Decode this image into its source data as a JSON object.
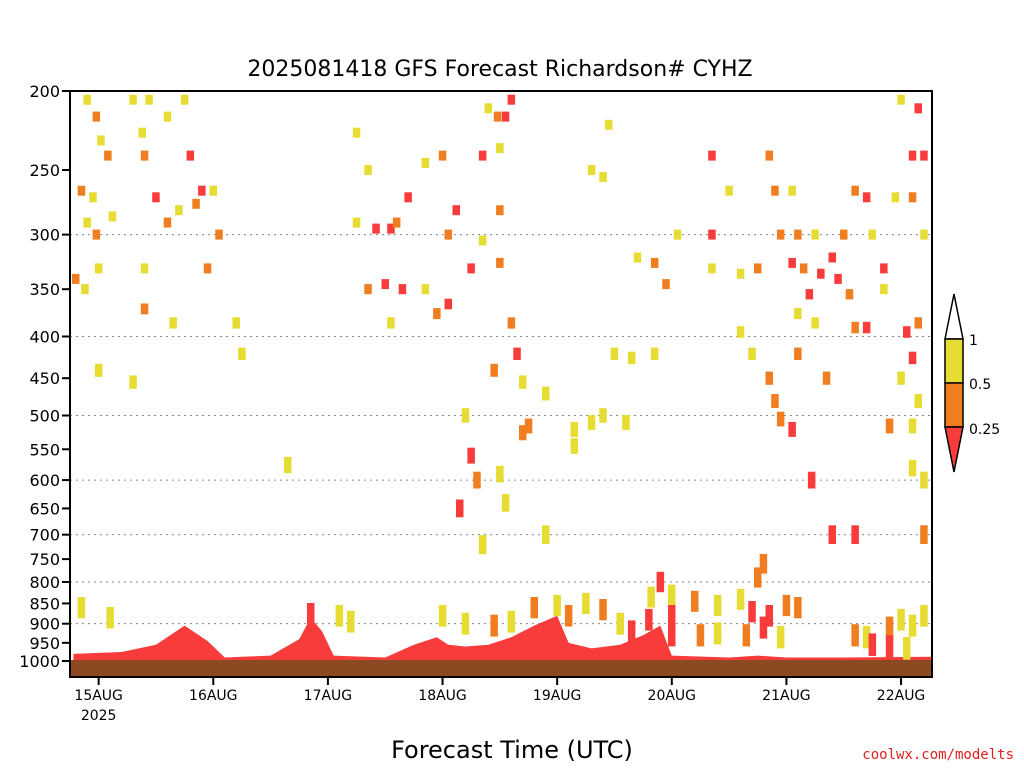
{
  "chart_data": {
    "type": "heatmap",
    "title": "2025081418 GFS Forecast Richardson# CYHZ",
    "xlabel": "Forecast Time (UTC)",
    "ylabel": "",
    "y_scale": "pressure (log), inverted",
    "ylim": [
      1000,
      200
    ],
    "y_ticks": [
      200,
      250,
      300,
      350,
      400,
      450,
      500,
      550,
      600,
      650,
      700,
      750,
      800,
      850,
      900,
      950,
      1000
    ],
    "y_gridlines": [
      300,
      400,
      500,
      600,
      700,
      800,
      900
    ],
    "x_ticks": [
      {
        "label": "15AUG",
        "sublabel": "2025",
        "day": 15
      },
      {
        "label": "16AUG",
        "sublabel": "",
        "day": 16
      },
      {
        "label": "17AUG",
        "sublabel": "",
        "day": 17
      },
      {
        "label": "18AUG",
        "sublabel": "",
        "day": 18
      },
      {
        "label": "19AUG",
        "sublabel": "",
        "day": 19
      },
      {
        "label": "20AUG",
        "sublabel": "",
        "day": 20
      },
      {
        "label": "21AUG",
        "sublabel": "",
        "day": 21
      },
      {
        "label": "22AUG",
        "sublabel": "",
        "day": 22
      }
    ],
    "xlim_days": [
      14.75,
      22.27
    ],
    "legend": {
      "placement": "right",
      "labels": [
        "1",
        "0.5",
        "0.25"
      ],
      "bins": [
        {
          "range": "<0.25",
          "color": "#f83c3c"
        },
        {
          "range": "0.25-0.5",
          "color": "#f07e20"
        },
        {
          "range": "0.5-1",
          "color": "#e6dc32"
        },
        {
          "range": ">1",
          "color": "#ffffff"
        }
      ]
    },
    "ground_color": "#8c4a22",
    "cells": [
      {
        "day": 14.9,
        "p": 205,
        "v": 0.6
      },
      {
        "day": 14.98,
        "p": 215,
        "v": 0.4
      },
      {
        "day": 15.02,
        "p": 230,
        "v": 0.7
      },
      {
        "day": 15.08,
        "p": 240,
        "v": 0.3
      },
      {
        "day": 14.85,
        "p": 265,
        "v": 0.4
      },
      {
        "day": 14.95,
        "p": 270,
        "v": 0.6
      },
      {
        "day": 14.9,
        "p": 290,
        "v": 0.7
      },
      {
        "day": 14.98,
        "p": 300,
        "v": 0.3
      },
      {
        "day": 15.12,
        "p": 285,
        "v": 0.6
      },
      {
        "day": 14.8,
        "p": 340,
        "v": 0.4
      },
      {
        "day": 14.88,
        "p": 350,
        "v": 0.7
      },
      {
        "day": 15.0,
        "p": 330,
        "v": 0.6
      },
      {
        "day": 15.3,
        "p": 205,
        "v": 0.6
      },
      {
        "day": 15.38,
        "p": 225,
        "v": 0.7
      },
      {
        "day": 15.44,
        "p": 205,
        "v": 0.6
      },
      {
        "day": 15.4,
        "p": 240,
        "v": 0.4
      },
      {
        "day": 15.6,
        "p": 215,
        "v": 0.6
      },
      {
        "day": 15.75,
        "p": 205,
        "v": 0.7
      },
      {
        "day": 15.8,
        "p": 240,
        "v": 0.2
      },
      {
        "day": 15.5,
        "p": 270,
        "v": 0.2
      },
      {
        "day": 15.6,
        "p": 290,
        "v": 0.4
      },
      {
        "day": 15.7,
        "p": 280,
        "v": 0.6
      },
      {
        "day": 15.9,
        "p": 265,
        "v": 0.2
      },
      {
        "day": 15.85,
        "p": 275,
        "v": 0.4
      },
      {
        "day": 16.0,
        "p": 265,
        "v": 0.6
      },
      {
        "day": 16.05,
        "p": 300,
        "v": 0.4
      },
      {
        "day": 15.95,
        "p": 330,
        "v": 0.4
      },
      {
        "day": 15.4,
        "p": 330,
        "v": 0.6
      },
      {
        "day": 15.4,
        "p": 370,
        "v": 0.4
      },
      {
        "day": 15.65,
        "p": 385,
        "v": 0.6
      },
      {
        "day": 16.2,
        "p": 385,
        "v": 0.6
      },
      {
        "day": 16.25,
        "p": 420,
        "v": 0.6
      },
      {
        "day": 15.0,
        "p": 440,
        "v": 0.6
      },
      {
        "day": 15.3,
        "p": 455,
        "v": 0.6
      },
      {
        "day": 16.65,
        "p": 575,
        "v": 0.6
      },
      {
        "day": 17.25,
        "p": 225,
        "v": 0.6
      },
      {
        "day": 17.35,
        "p": 250,
        "v": 0.6
      },
      {
        "day": 17.25,
        "p": 290,
        "v": 0.6
      },
      {
        "day": 17.42,
        "p": 295,
        "v": 0.2
      },
      {
        "day": 17.55,
        "p": 295,
        "v": 0.2
      },
      {
        "day": 17.7,
        "p": 270,
        "v": 0.2
      },
      {
        "day": 17.6,
        "p": 290,
        "v": 0.4
      },
      {
        "day": 17.85,
        "p": 245,
        "v": 0.6
      },
      {
        "day": 18.0,
        "p": 240,
        "v": 0.4
      },
      {
        "day": 18.12,
        "p": 280,
        "v": 0.2
      },
      {
        "day": 18.05,
        "p": 300,
        "v": 0.4
      },
      {
        "day": 17.35,
        "p": 350,
        "v": 0.4
      },
      {
        "day": 17.5,
        "p": 345,
        "v": 0.2
      },
      {
        "day": 17.65,
        "p": 350,
        "v": 0.2
      },
      {
        "day": 17.85,
        "p": 350,
        "v": 0.6
      },
      {
        "day": 18.05,
        "p": 365,
        "v": 0.2
      },
      {
        "day": 17.95,
        "p": 375,
        "v": 0.4
      },
      {
        "day": 17.55,
        "p": 385,
        "v": 0.6
      },
      {
        "day": 18.4,
        "p": 210,
        "v": 0.6
      },
      {
        "day": 18.48,
        "p": 215,
        "v": 0.4
      },
      {
        "day": 18.55,
        "p": 215,
        "v": 0.2
      },
      {
        "day": 18.6,
        "p": 205,
        "v": 0.2
      },
      {
        "day": 18.5,
        "p": 235,
        "v": 0.6
      },
      {
        "day": 18.35,
        "p": 240,
        "v": 0.2
      },
      {
        "day": 18.5,
        "p": 280,
        "v": 0.4
      },
      {
        "day": 18.35,
        "p": 305,
        "v": 0.6
      },
      {
        "day": 18.5,
        "p": 325,
        "v": 0.4
      },
      {
        "day": 18.25,
        "p": 330,
        "v": 0.2
      },
      {
        "day": 18.6,
        "p": 385,
        "v": 0.4
      },
      {
        "day": 18.65,
        "p": 420,
        "v": 0.2
      },
      {
        "day": 18.45,
        "p": 440,
        "v": 0.4
      },
      {
        "day": 18.7,
        "p": 455,
        "v": 0.6
      },
      {
        "day": 18.2,
        "p": 500,
        "v": 0.6
      },
      {
        "day": 18.25,
        "p": 560,
        "v": 0.2
      },
      {
        "day": 18.3,
        "p": 600,
        "v": 0.4
      },
      {
        "day": 18.5,
        "p": 590,
        "v": 0.6
      },
      {
        "day": 18.7,
        "p": 525,
        "v": 0.4
      },
      {
        "day": 18.55,
        "p": 640,
        "v": 0.6
      },
      {
        "day": 18.15,
        "p": 650,
        "v": 0.2
      },
      {
        "day": 18.35,
        "p": 720,
        "v": 0.6
      },
      {
        "day": 18.9,
        "p": 700,
        "v": 0.6
      },
      {
        "day": 18.75,
        "p": 515,
        "v": 0.4
      },
      {
        "day": 18.9,
        "p": 470,
        "v": 0.6
      },
      {
        "day": 19.15,
        "p": 520,
        "v": 0.6
      },
      {
        "day": 19.3,
        "p": 510,
        "v": 0.6
      },
      {
        "day": 19.4,
        "p": 500,
        "v": 0.6
      },
      {
        "day": 19.6,
        "p": 510,
        "v": 0.6
      },
      {
        "day": 19.15,
        "p": 545,
        "v": 0.6
      },
      {
        "day": 19.3,
        "p": 250,
        "v": 0.6
      },
      {
        "day": 19.4,
        "p": 255,
        "v": 0.6
      },
      {
        "day": 19.45,
        "p": 220,
        "v": 0.6
      },
      {
        "day": 19.7,
        "p": 320,
        "v": 0.6
      },
      {
        "day": 19.85,
        "p": 325,
        "v": 0.4
      },
      {
        "day": 19.95,
        "p": 345,
        "v": 0.4
      },
      {
        "day": 20.05,
        "p": 300,
        "v": 0.6
      },
      {
        "day": 19.5,
        "p": 420,
        "v": 0.6
      },
      {
        "day": 19.65,
        "p": 425,
        "v": 0.6
      },
      {
        "day": 19.85,
        "p": 420,
        "v": 0.6
      },
      {
        "day": 20.35,
        "p": 240,
        "v": 0.2
      },
      {
        "day": 20.35,
        "p": 300,
        "v": 0.2
      },
      {
        "day": 20.35,
        "p": 330,
        "v": 0.6
      },
      {
        "day": 20.5,
        "p": 265,
        "v": 0.6
      },
      {
        "day": 20.6,
        "p": 335,
        "v": 0.6
      },
      {
        "day": 20.6,
        "p": 395,
        "v": 0.6
      },
      {
        "day": 20.7,
        "p": 420,
        "v": 0.6
      },
      {
        "day": 20.85,
        "p": 240,
        "v": 0.4
      },
      {
        "day": 20.75,
        "p": 330,
        "v": 0.4
      },
      {
        "day": 20.9,
        "p": 265,
        "v": 0.4
      },
      {
        "day": 21.05,
        "p": 265,
        "v": 0.6
      },
      {
        "day": 20.95,
        "p": 300,
        "v": 0.4
      },
      {
        "day": 21.1,
        "p": 300,
        "v": 0.4
      },
      {
        "day": 21.05,
        "p": 325,
        "v": 0.2
      },
      {
        "day": 21.15,
        "p": 330,
        "v": 0.4
      },
      {
        "day": 21.25,
        "p": 300,
        "v": 0.6
      },
      {
        "day": 21.3,
        "p": 335,
        "v": 0.2
      },
      {
        "day": 21.2,
        "p": 355,
        "v": 0.2
      },
      {
        "day": 21.1,
        "p": 375,
        "v": 0.6
      },
      {
        "day": 21.25,
        "p": 385,
        "v": 0.6
      },
      {
        "day": 21.5,
        "p": 300,
        "v": 0.4
      },
      {
        "day": 21.4,
        "p": 320,
        "v": 0.2
      },
      {
        "day": 21.45,
        "p": 340,
        "v": 0.2
      },
      {
        "day": 21.6,
        "p": 265,
        "v": 0.4
      },
      {
        "day": 21.7,
        "p": 270,
        "v": 0.2
      },
      {
        "day": 21.75,
        "p": 300,
        "v": 0.6
      },
      {
        "day": 21.55,
        "p": 355,
        "v": 0.4
      },
      {
        "day": 21.7,
        "p": 390,
        "v": 0.2
      },
      {
        "day": 21.85,
        "p": 330,
        "v": 0.2
      },
      {
        "day": 21.85,
        "p": 350,
        "v": 0.6
      },
      {
        "day": 21.6,
        "p": 390,
        "v": 0.4
      },
      {
        "day": 21.95,
        "p": 270,
        "v": 0.6
      },
      {
        "day": 22.1,
        "p": 270,
        "v": 0.4
      },
      {
        "day": 22.2,
        "p": 300,
        "v": 0.6
      },
      {
        "day": 22.0,
        "p": 205,
        "v": 0.6
      },
      {
        "day": 22.15,
        "p": 210,
        "v": 0.2
      },
      {
        "day": 22.1,
        "p": 240,
        "v": 0.2
      },
      {
        "day": 22.2,
        "p": 240,
        "v": 0.2
      },
      {
        "day": 22.05,
        "p": 395,
        "v": 0.2
      },
      {
        "day": 22.15,
        "p": 385,
        "v": 0.4
      },
      {
        "day": 22.1,
        "p": 425,
        "v": 0.2
      },
      {
        "day": 22.0,
        "p": 450,
        "v": 0.6
      },
      {
        "day": 22.15,
        "p": 480,
        "v": 0.6
      },
      {
        "day": 21.9,
        "p": 515,
        "v": 0.4
      },
      {
        "day": 22.1,
        "p": 515,
        "v": 0.6
      },
      {
        "day": 22.1,
        "p": 580,
        "v": 0.6
      },
      {
        "day": 22.2,
        "p": 600,
        "v": 0.6
      },
      {
        "day": 20.85,
        "p": 450,
        "v": 0.4
      },
      {
        "day": 20.9,
        "p": 480,
        "v": 0.4
      },
      {
        "day": 20.95,
        "p": 505,
        "v": 0.4
      },
      {
        "day": 21.05,
        "p": 520,
        "v": 0.2
      },
      {
        "day": 21.1,
        "p": 420,
        "v": 0.4
      },
      {
        "day": 21.35,
        "p": 450,
        "v": 0.4
      },
      {
        "day": 21.22,
        "p": 600,
        "v": 0.2
      },
      {
        "day": 21.4,
        "p": 700,
        "v": 0.2
      },
      {
        "day": 21.6,
        "p": 700,
        "v": 0.2
      },
      {
        "day": 22.2,
        "p": 700,
        "v": 0.4
      },
      {
        "day": 20.8,
        "p": 760,
        "v": 0.4
      },
      {
        "day": 20.75,
        "p": 790,
        "v": 0.4
      },
      {
        "day": 19.9,
        "p": 800,
        "v": 0.2
      },
      {
        "day": 19.82,
        "p": 835,
        "v": 0.6
      },
      {
        "day": 20.0,
        "p": 830,
        "v": 0.6
      },
      {
        "day": 20.2,
        "p": 845,
        "v": 0.4
      },
      {
        "day": 20.4,
        "p": 855,
        "v": 0.6
      },
      {
        "day": 20.6,
        "p": 840,
        "v": 0.6
      },
      {
        "day": 20.7,
        "p": 870,
        "v": 0.2
      },
      {
        "day": 20.85,
        "p": 880,
        "v": 0.2
      },
      {
        "day": 21.0,
        "p": 855,
        "v": 0.4
      },
      {
        "day": 21.1,
        "p": 860,
        "v": 0.4
      },
      {
        "day": 20.25,
        "p": 930,
        "v": 0.4
      },
      {
        "day": 20.4,
        "p": 925,
        "v": 0.6
      },
      {
        "day": 20.65,
        "p": 930,
        "v": 0.4
      },
      {
        "day": 20.8,
        "p": 910,
        "v": 0.2
      },
      {
        "day": 20.95,
        "p": 935,
        "v": 0.6
      },
      {
        "day": 21.6,
        "p": 930,
        "v": 0.4
      },
      {
        "day": 21.7,
        "p": 935,
        "v": 0.6
      },
      {
        "day": 21.9,
        "p": 910,
        "v": 0.4
      },
      {
        "day": 22.0,
        "p": 890,
        "v": 0.6
      },
      {
        "day": 22.1,
        "p": 905,
        "v": 0.6
      },
      {
        "day": 22.2,
        "p": 880,
        "v": 0.6
      },
      {
        "day": 21.75,
        "p": 955,
        "v": 0.2
      },
      {
        "day": 21.9,
        "p": 960,
        "v": 0.2
      },
      {
        "day": 22.05,
        "p": 965,
        "v": 0.6
      },
      {
        "day": 15.1,
        "p": 885,
        "v": 0.6
      },
      {
        "day": 14.85,
        "p": 860,
        "v": 0.6
      },
      {
        "day": 17.1,
        "p": 880,
        "v": 0.6
      },
      {
        "day": 17.2,
        "p": 895,
        "v": 0.6
      },
      {
        "day": 18.0,
        "p": 880,
        "v": 0.6
      },
      {
        "day": 18.2,
        "p": 900,
        "v": 0.6
      },
      {
        "day": 18.45,
        "p": 905,
        "v": 0.4
      },
      {
        "day": 18.6,
        "p": 895,
        "v": 0.6
      },
      {
        "day": 18.8,
        "p": 860,
        "v": 0.4
      },
      {
        "day": 19.0,
        "p": 855,
        "v": 0.6
      },
      {
        "day": 19.1,
        "p": 880,
        "v": 0.4
      },
      {
        "day": 19.25,
        "p": 850,
        "v": 0.6
      },
      {
        "day": 19.4,
        "p": 865,
        "v": 0.4
      },
      {
        "day": 19.55,
        "p": 900,
        "v": 0.6
      },
      {
        "day": 19.65,
        "p": 920,
        "v": 0.2
      },
      {
        "day": 19.8,
        "p": 890,
        "v": 0.2
      },
      {
        "day": 20.0,
        "p": 880,
        "v": 0.2
      },
      {
        "day": 20.0,
        "p": 930,
        "v": 0.2
      },
      {
        "day": 16.85,
        "p": 875,
        "v": 0.2
      }
    ],
    "boundary_layer": {
      "bottom_p": 1000,
      "top_p_by_day": [
        {
          "day": 14.78,
          "p": 980
        },
        {
          "day": 15.2,
          "p": 975
        },
        {
          "day": 15.5,
          "p": 955
        },
        {
          "day": 15.75,
          "p": 905
        },
        {
          "day": 15.95,
          "p": 945
        },
        {
          "day": 16.1,
          "p": 990
        },
        {
          "day": 16.5,
          "p": 985
        },
        {
          "day": 16.75,
          "p": 940
        },
        {
          "day": 16.85,
          "p": 885
        },
        {
          "day": 16.95,
          "p": 920
        },
        {
          "day": 17.05,
          "p": 985
        },
        {
          "day": 17.5,
          "p": 990
        },
        {
          "day": 17.75,
          "p": 955
        },
        {
          "day": 17.95,
          "p": 935
        },
        {
          "day": 18.05,
          "p": 955
        },
        {
          "day": 18.2,
          "p": 960
        },
        {
          "day": 18.4,
          "p": 955
        },
        {
          "day": 18.6,
          "p": 935
        },
        {
          "day": 18.8,
          "p": 905
        },
        {
          "day": 19.0,
          "p": 880
        },
        {
          "day": 19.1,
          "p": 950
        },
        {
          "day": 19.3,
          "p": 965
        },
        {
          "day": 19.55,
          "p": 955
        },
        {
          "day": 19.75,
          "p": 930
        },
        {
          "day": 19.9,
          "p": 905
        },
        {
          "day": 20.0,
          "p": 985
        },
        {
          "day": 20.5,
          "p": 990
        },
        {
          "day": 20.75,
          "p": 985
        },
        {
          "day": 21.0,
          "p": 990
        },
        {
          "day": 21.5,
          "p": 990
        },
        {
          "day": 22.27,
          "p": 988
        }
      ]
    }
  },
  "credit": "coolwx.com/modelts"
}
